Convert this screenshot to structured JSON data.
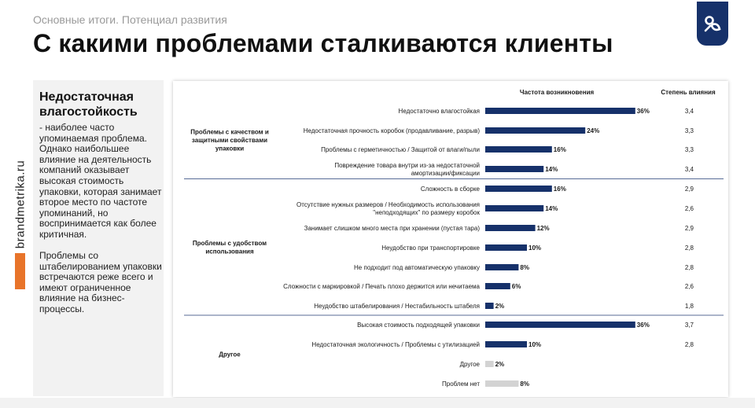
{
  "header": {
    "subtitle": "Основные итоги. Потенциал развития",
    "title": "С какими проблемами сталкиваются клиенты"
  },
  "brand": {
    "side_text": "brandmetrika.ru",
    "logo_icon": "pacifier-icon",
    "logo_color": "#16316a",
    "accent_color": "#e8742a"
  },
  "left_panel": {
    "heading": "Недостаточная влагостойкость",
    "paragraph1": "- наиболее часто упоминаемая проблема. Однако наибольшее влияние на деятельность компаний оказывает высокая стоимость упаковки, которая занимает второе место по частоте упоминаний, но воспринимается как более критичная.",
    "paragraph2": "Проблемы со штабелированием упаковки встречаются реже всего и имеют ограниченное влияние на бизнес-процессы."
  },
  "chart_data": {
    "type": "bar",
    "orientation": "horizontal",
    "column_headers": {
      "frequency": "Частота возникновения",
      "impact": "Степень влияния"
    },
    "colors": {
      "bar": "#16316a",
      "bar_muted": "#d3d3d3",
      "divider": "#1f3a73"
    },
    "groups": [
      {
        "label": "Проблемы с качеством и защитными свойствами упаковки",
        "items": [
          {
            "label": "Недостаточно влагостойкая",
            "value": 36,
            "value_label": "36%",
            "impact": "3,4"
          },
          {
            "label": "Недостаточная прочность коробок (продавливание, разрыв)",
            "value": 24,
            "value_label": "24%",
            "impact": "3,3"
          },
          {
            "label": "Проблемы с герметичностью / Защитой от влаги/пыли",
            "value": 16,
            "value_label": "16%",
            "impact": "3,3"
          },
          {
            "label": "Повреждение товара внутри из-за недостаточной амортизации/фиксации",
            "value": 14,
            "value_label": "14%",
            "impact": "3,4"
          }
        ]
      },
      {
        "label": "Проблемы с удобством использования",
        "items": [
          {
            "label": "Сложность в сборке",
            "value": 16,
            "value_label": "16%",
            "impact": "2,9"
          },
          {
            "label": "Отсутствие нужных размеров / Необходимость использования \"неподходящих\" по размеру коробок",
            "value": 14,
            "value_label": "14%",
            "impact": "2,6"
          },
          {
            "label": "Занимает слишком много места при хранении (пустая тара)",
            "value": 12,
            "value_label": "12%",
            "impact": "2,9"
          },
          {
            "label": "Неудобство при транспортировке",
            "value": 10,
            "value_label": "10%",
            "impact": "2,8"
          },
          {
            "label": "Не подходит под автоматическую упаковку",
            "value": 8,
            "value_label": "8%",
            "impact": "2,8"
          },
          {
            "label": "Сложности с маркировкой / Печать плохо держится или нечитаема",
            "value": 6,
            "value_label": "6%",
            "impact": "2,6"
          },
          {
            "label": "Неудобство штабелирования / Нестабильность штабеля",
            "value": 2,
            "value_label": "2%",
            "impact": "1,8"
          }
        ]
      },
      {
        "label": "Другое",
        "items": [
          {
            "label": "Высокая стоимость подходящей упаковки",
            "value": 36,
            "value_label": "36%",
            "impact": "3,7"
          },
          {
            "label": "Недостаточная экологичность / Проблемы с утилизацией",
            "value": 10,
            "value_label": "10%",
            "impact": "2,8"
          },
          {
            "label": "Другое",
            "value": 2,
            "value_label": "2%",
            "impact": "",
            "muted": true
          },
          {
            "label": "Проблем нет",
            "value": 8,
            "value_label": "8%",
            "impact": "",
            "muted": true
          }
        ]
      }
    ]
  }
}
